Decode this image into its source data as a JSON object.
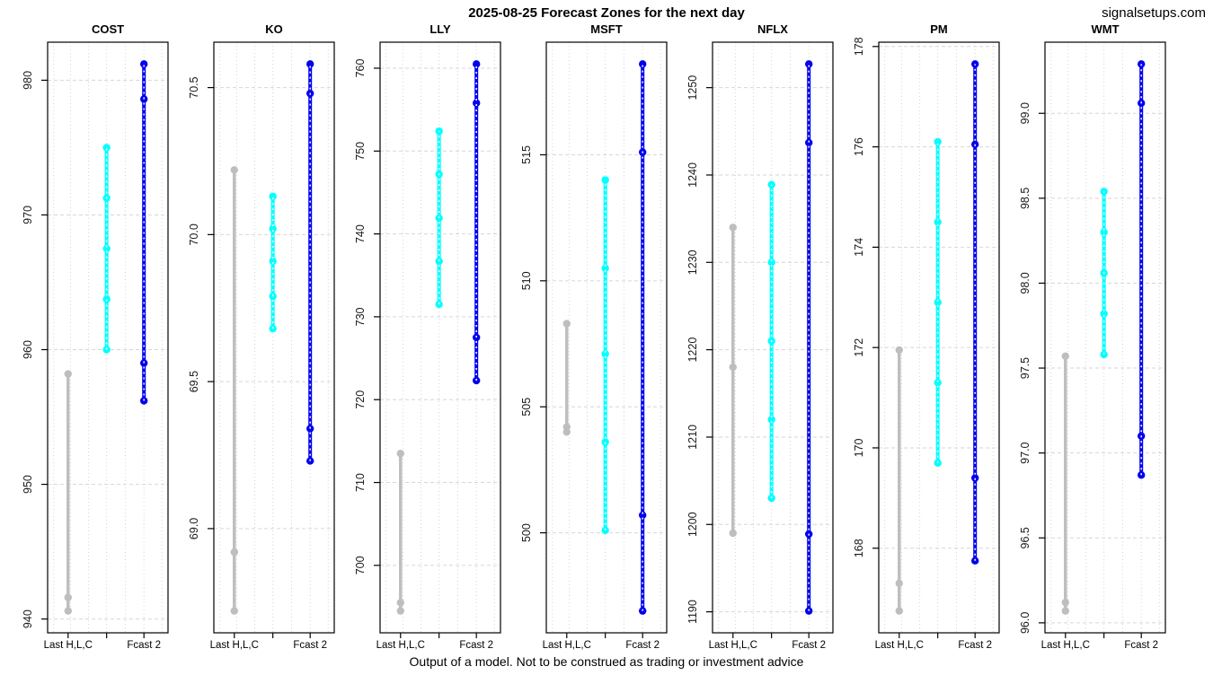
{
  "page": {
    "title": "2025-08-25 Forecast Zones for the next day",
    "watermark": "signalsetups.com",
    "disclaimer": "Output of a model. Not to be construed as trading or investment advice"
  },
  "chart_data": {
    "type": "scatter",
    "subtype": "vertical-range-forecast-zones",
    "x_positions": [
      "Last H,L,C",
      "Fcast 1",
      "Fcast 2"
    ],
    "x_axis_labels_shown": [
      "Last H,L,C",
      "Fcast 2"
    ],
    "legend": "none",
    "grid": "on",
    "colors": {
      "last_hlc": "#bebebe",
      "fcast1": "#00ffff",
      "fcast2": "#0202ee",
      "gridline": "#d6d6d6",
      "axis": "#000000"
    },
    "panels": [
      {
        "symbol": "COST",
        "yticks": [
          "940",
          "950",
          "960",
          "970",
          "980"
        ],
        "last_hlc": {
          "high": 958.2,
          "low": 940.6,
          "close": 941.6
        },
        "fcast1": [
          960.0,
          963.75,
          967.5,
          971.25,
          975.0
        ],
        "fcast2": [
          956.2,
          959.0,
          978.6,
          981.2
        ]
      },
      {
        "symbol": "KO",
        "yticks": [
          "69.0",
          "69.5",
          "70.0",
          "70.5"
        ],
        "last_hlc": {
          "high": 70.22,
          "low": 68.72,
          "close": 68.92
        },
        "fcast1": [
          69.68,
          69.79,
          69.91,
          70.02,
          70.13
        ],
        "fcast2": [
          69.23,
          69.34,
          70.48,
          70.58
        ]
      },
      {
        "symbol": "LLY",
        "yticks": [
          "700",
          "710",
          "720",
          "730",
          "740",
          "750",
          "760"
        ],
        "last_hlc": {
          "high": 713.5,
          "low": 694.5,
          "close": 695.5
        },
        "fcast1": [
          731.5,
          736.7,
          741.9,
          747.2,
          752.4
        ],
        "fcast2": [
          722.3,
          727.5,
          755.8,
          760.5
        ]
      },
      {
        "symbol": "MSFT",
        "yticks": [
          "500",
          "505",
          "510",
          "515"
        ],
        "last_hlc": {
          "high": 508.3,
          "low": 504.0,
          "close": 504.2
        },
        "fcast1": [
          500.1,
          503.6,
          507.1,
          510.5,
          514.0
        ],
        "fcast2": [
          496.9,
          500.7,
          515.1,
          518.6
        ]
      },
      {
        "symbol": "NFLX",
        "yticks": [
          "1190",
          "1200",
          "1210",
          "1220",
          "1230",
          "1240",
          "1250"
        ],
        "last_hlc": {
          "high": 1234.0,
          "low": 1199.0,
          "close": 1218.0
        },
        "fcast1": [
          1203.0,
          1212.0,
          1221.0,
          1230.0,
          1238.9
        ],
        "fcast2": [
          1190.1,
          1198.9,
          1243.7,
          1252.7
        ]
      },
      {
        "symbol": "PM",
        "yticks": [
          "168",
          "170",
          "172",
          "174",
          "176",
          "178"
        ],
        "last_hlc": {
          "high": 171.95,
          "low": 166.75,
          "close": 167.3
        },
        "fcast1": [
          169.7,
          171.3,
          172.9,
          174.5,
          176.1
        ],
        "fcast2": [
          167.75,
          169.4,
          176.05,
          177.65
        ]
      },
      {
        "symbol": "WMT",
        "yticks": [
          "96.0",
          "96.5",
          "97.0",
          "97.5",
          "98.0",
          "98.5",
          "99.0"
        ],
        "last_hlc": {
          "high": 97.57,
          "low": 96.07,
          "close": 96.12
        },
        "fcast1": [
          97.58,
          97.82,
          98.06,
          98.3,
          98.54
        ],
        "fcast2": [
          96.87,
          97.1,
          99.06,
          99.29
        ]
      }
    ]
  }
}
